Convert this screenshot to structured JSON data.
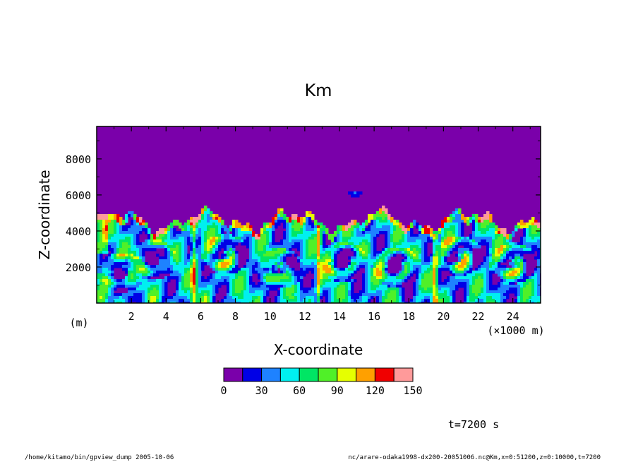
{
  "chart_data": {
    "type": "heatmap",
    "title": "Km",
    "xlabel": "X-coordinate",
    "ylabel": "Z-coordinate",
    "x_unit_left": "(m)",
    "x_unit_right": "(×1000 m)",
    "xlim": [
      0,
      25.6
    ],
    "ylim": [
      0,
      9800
    ],
    "x_ticks": [
      2,
      4,
      6,
      8,
      10,
      12,
      14,
      16,
      18,
      20,
      22,
      24
    ],
    "y_ticks": [
      2000,
      4000,
      6000,
      8000
    ],
    "colorbar": {
      "levels": [
        0,
        15,
        30,
        45,
        60,
        75,
        90,
        105,
        120,
        135,
        150
      ],
      "labels": [
        "0",
        "30",
        "60",
        "90",
        "120",
        "150"
      ],
      "colors": [
        "#7a00aa",
        "#0000e6",
        "#1e82ff",
        "#00f0f0",
        "#00e664",
        "#50f028",
        "#e6ff00",
        "#ffa000",
        "#f00000",
        "#ff9a9a"
      ]
    },
    "field_description": "Mostly zero above about 5000 m; turbulent eddies below with values mostly 15-60, peaks 90-150 near z=4500-5200 m"
  },
  "annotations": {
    "time": "t=7200 s",
    "footer_left": "/home/kitamo/bin/gpview_dump  2005-10-06",
    "footer_right": "nc/arare-odaka1998-dx200-20051006.nc@Km,x=0:51200,z=0:10000,t=7200"
  }
}
